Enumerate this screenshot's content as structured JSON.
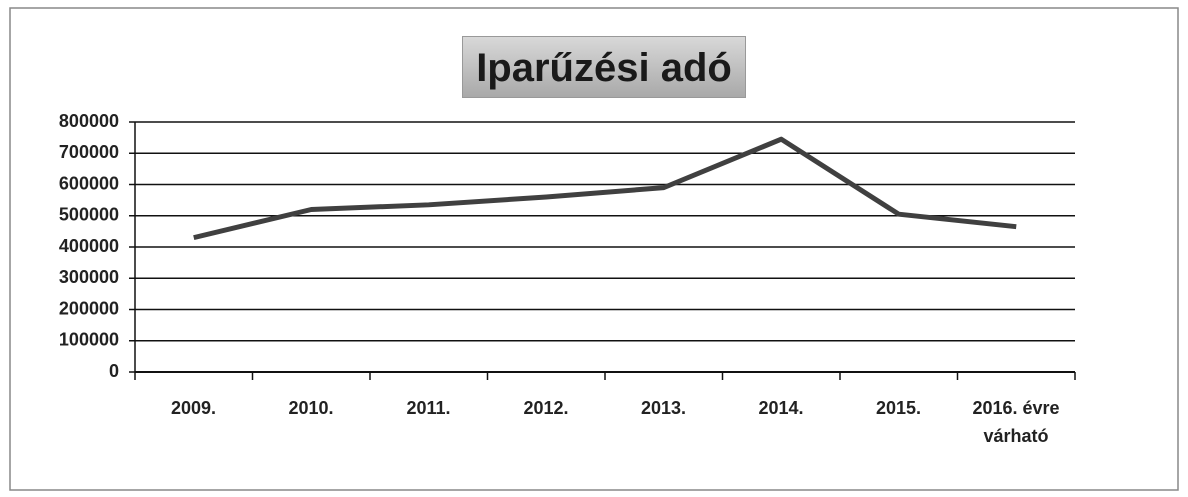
{
  "chart_data": {
    "type": "line",
    "title": "Iparűzési adó",
    "categories": [
      "2009.",
      "2010.",
      "2011.",
      "2012.",
      "2013.",
      "2014.",
      "2015.",
      "2016. évre várható"
    ],
    "values": [
      430000,
      520000,
      535000,
      560000,
      590000,
      745000,
      505000,
      465000
    ],
    "color": "#404040",
    "ylim": [
      0,
      800000
    ],
    "yticks": [
      0,
      100000,
      200000,
      300000,
      400000,
      500000,
      600000,
      700000,
      800000
    ],
    "grid": true
  }
}
